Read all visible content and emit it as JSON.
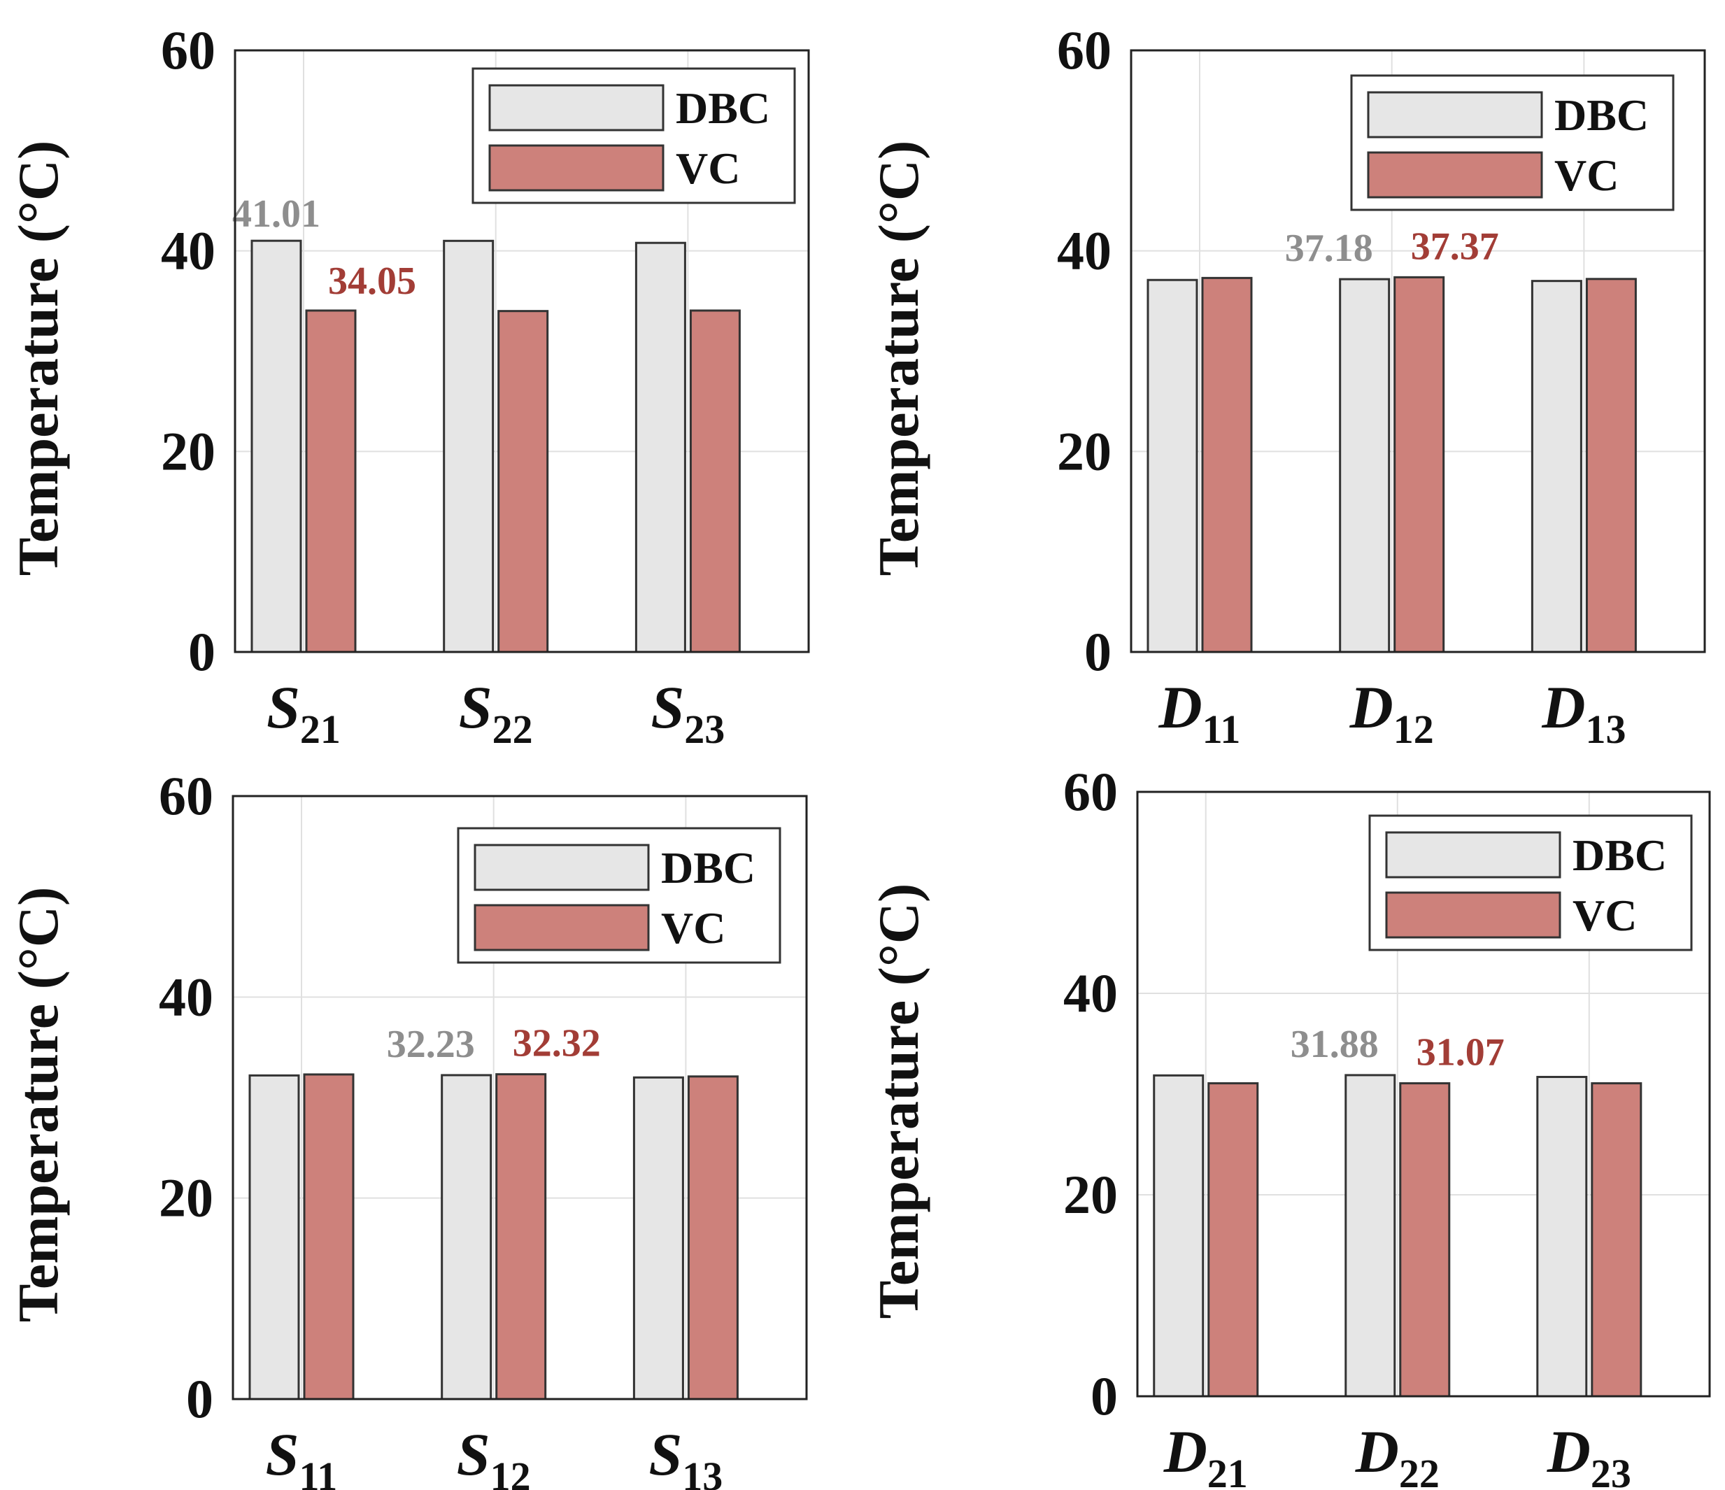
{
  "chart_data": [
    {
      "type": "bar",
      "ylabel": "Temperature (°C)",
      "ylim": [
        0,
        60
      ],
      "yticks": [
        "0",
        "20",
        "40",
        "60"
      ],
      "grid": true,
      "legend_position": "top-right",
      "categories": [
        {
          "letter": "S",
          "sub": "21"
        },
        {
          "letter": "S",
          "sub": "22"
        },
        {
          "letter": "S",
          "sub": "23"
        }
      ],
      "series": [
        {
          "name": "DBC",
          "color": "#e6e6e6",
          "values": [
            41.01,
            41.0,
            40.8
          ]
        },
        {
          "name": "VC",
          "color": "#cd817b",
          "values": [
            34.05,
            34.0,
            34.05
          ]
        }
      ],
      "annotations": [
        {
          "series": 0,
          "index": 0,
          "text": "41.01",
          "color": "#8e8e8e"
        },
        {
          "series": 1,
          "index": 0,
          "text": "34.05",
          "color": "#a23d36"
        }
      ]
    },
    {
      "type": "bar",
      "ylabel": "Temperature (°C)",
      "ylim": [
        0,
        60
      ],
      "yticks": [
        "0",
        "20",
        "40",
        "60"
      ],
      "grid": true,
      "legend_position": "top-right",
      "categories": [
        {
          "letter": "D",
          "sub": "11"
        },
        {
          "letter": "D",
          "sub": "12"
        },
        {
          "letter": "D",
          "sub": "13"
        }
      ],
      "series": [
        {
          "name": "DBC",
          "color": "#e6e6e6",
          "values": [
            37.1,
            37.18,
            37.0
          ]
        },
        {
          "name": "VC",
          "color": "#cd817b",
          "values": [
            37.3,
            37.37,
            37.2
          ]
        }
      ],
      "annotations": [
        {
          "series": 0,
          "index": 1,
          "text": "37.18",
          "color": "#8e8e8e"
        },
        {
          "series": 1,
          "index": 1,
          "text": "37.37",
          "color": "#a23d36"
        }
      ]
    },
    {
      "type": "bar",
      "ylabel": "Temperature (°C)",
      "ylim": [
        0,
        60
      ],
      "yticks": [
        "0",
        "20",
        "40",
        "60"
      ],
      "grid": true,
      "legend_position": "top-right",
      "categories": [
        {
          "letter": "S",
          "sub": "11"
        },
        {
          "letter": "S",
          "sub": "12"
        },
        {
          "letter": "S",
          "sub": "13"
        }
      ],
      "series": [
        {
          "name": "DBC",
          "color": "#e6e6e6",
          "values": [
            32.2,
            32.23,
            32.0
          ]
        },
        {
          "name": "VC",
          "color": "#cd817b",
          "values": [
            32.3,
            32.32,
            32.1
          ]
        }
      ],
      "annotations": [
        {
          "series": 0,
          "index": 1,
          "text": "32.23",
          "color": "#8e8e8e"
        },
        {
          "series": 1,
          "index": 1,
          "text": "32.32",
          "color": "#a23d36"
        }
      ]
    },
    {
      "type": "bar",
      "ylabel": "Temperature (°C)",
      "ylim": [
        0,
        60
      ],
      "yticks": [
        "0",
        "20",
        "40",
        "60"
      ],
      "grid": true,
      "legend_position": "top-right",
      "categories": [
        {
          "letter": "D",
          "sub": "21"
        },
        {
          "letter": "D",
          "sub": "22"
        },
        {
          "letter": "D",
          "sub": "23"
        }
      ],
      "series": [
        {
          "name": "DBC",
          "color": "#e6e6e6",
          "values": [
            31.85,
            31.88,
            31.7
          ]
        },
        {
          "name": "VC",
          "color": "#cd817b",
          "values": [
            31.07,
            31.07,
            31.07
          ]
        }
      ],
      "annotations": [
        {
          "series": 0,
          "index": 1,
          "text": "31.88",
          "color": "#8e8e8e"
        },
        {
          "series": 1,
          "index": 1,
          "text": "31.07",
          "color": "#a23d36"
        }
      ]
    }
  ]
}
